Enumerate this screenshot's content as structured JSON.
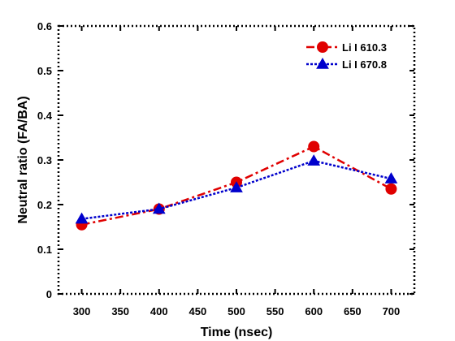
{
  "chart_data": {
    "type": "line",
    "xlabel": "Time (nsec)",
    "ylabel": "Neutral ratio (FA/BA)",
    "xlim": [
      270,
      730
    ],
    "ylim": [
      0,
      0.6
    ],
    "x_ticks": [
      "300",
      "350",
      "400",
      "450",
      "500",
      "550",
      "600",
      "650",
      "700"
    ],
    "y_ticks": [
      "0",
      "0.1",
      "0.2",
      "0.3",
      "0.4",
      "0.5",
      "0.6"
    ],
    "grid": false,
    "legend_position": "top-right",
    "series": [
      {
        "name": "Li I 610.3",
        "color": "#e00000",
        "marker": "circle",
        "line_style": "dash-dot",
        "x": [
          300,
          400,
          500,
          600,
          700
        ],
        "y": [
          0.155,
          0.19,
          0.25,
          0.33,
          0.235
        ]
      },
      {
        "name": "Li I 670.8",
        "color": "#0000cc",
        "marker": "triangle",
        "line_style": "dotted",
        "x": [
          300,
          400,
          500,
          600,
          700
        ],
        "y": [
          0.168,
          0.19,
          0.238,
          0.298,
          0.258
        ]
      }
    ]
  }
}
